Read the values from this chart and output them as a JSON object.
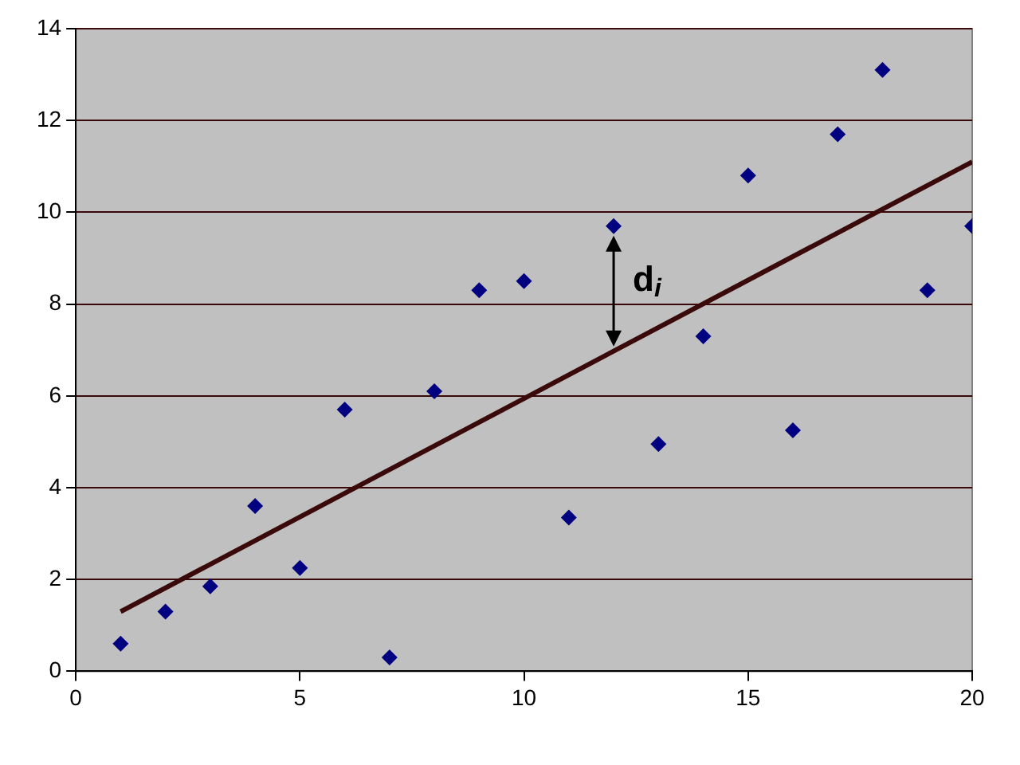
{
  "chart_data": {
    "type": "scatter",
    "xlim": [
      0,
      20
    ],
    "xticks": [
      0,
      5,
      10,
      15,
      20
    ],
    "ylim": [
      0,
      14
    ],
    "yticks": [
      0,
      2,
      4,
      6,
      8,
      10,
      12,
      14
    ],
    "grid": "y",
    "legend": false,
    "marker": "diamond",
    "series": [
      {
        "color": "#000080",
        "x": [
          1,
          2,
          3,
          4,
          5,
          6,
          7,
          8,
          9,
          10,
          11,
          12,
          13,
          14,
          15,
          16,
          17,
          18,
          19,
          20
        ],
        "values": [
          0.6,
          1.3,
          1.85,
          3.6,
          2.25,
          5.7,
          0.3,
          6.1,
          8.3,
          8.5,
          3.35,
          9.7,
          4.95,
          7.3,
          10.8,
          5.25,
          11.7,
          13.1,
          8.3,
          9.7
        ]
      },
      {
        "type": "line",
        "color": "#3a0a0a",
        "x": [
          1,
          20
        ],
        "values": [
          1.3,
          11.1
        ],
        "marker": "none"
      }
    ],
    "annotations": [
      {
        "text": "d$_{i}$",
        "x": 12,
        "y": 9.7
      }
    ]
  }
}
